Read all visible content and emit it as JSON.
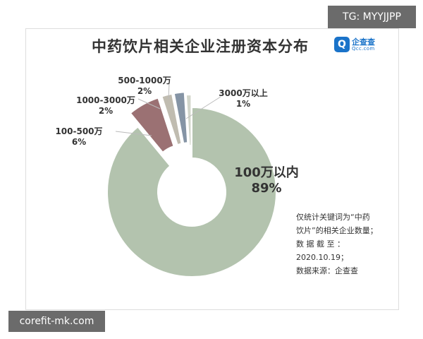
{
  "watermarks": {
    "top": "TG: MYYJJPP",
    "bottom": "corefit-mk.com"
  },
  "brand": {
    "name": "企查查",
    "url": "Qcc.com",
    "mark": "Q"
  },
  "colors": {
    "main": "#b3c3ae",
    "slice2": "#9b7173",
    "slice3": "#c0bcb0",
    "slice4": "#8594a5",
    "slice5": "#d2d6cb"
  },
  "chart_data": {
    "type": "pie",
    "title": "中药饮片相关企业注册资本分布",
    "donut": true,
    "slices": [
      {
        "label": "100万以内",
        "percent": 89,
        "value_text": "89%"
      },
      {
        "label": "100-500万",
        "percent": 6,
        "value_text": "6%"
      },
      {
        "label": "1000-3000万",
        "percent": 2,
        "value_text": "2%"
      },
      {
        "label": "500-1000万",
        "percent": 2,
        "value_text": "2%"
      },
      {
        "label": "3000万以上",
        "percent": 1,
        "value_text": "1%"
      }
    ]
  },
  "note_lines": [
    "仅统计关键词为“中药",
    "饮片”的相关企业数量；",
    "数  据  截  至  ：",
    "2020.10.19；",
    "数据来源：企查查"
  ]
}
